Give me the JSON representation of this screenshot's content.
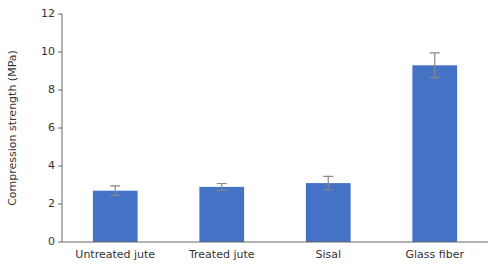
{
  "chart_data": {
    "type": "bar",
    "categories": [
      "Untreated jute",
      "Treated jute",
      "Sisal",
      "Glass fiber"
    ],
    "values": [
      2.7,
      2.9,
      3.1,
      9.3
    ],
    "errors": [
      0.25,
      0.18,
      0.35,
      0.65
    ],
    "color": "#4472C4",
    "ylabel": "Compression strength (MPa)",
    "ylim": [
      0,
      12
    ],
    "yticks": [
      0,
      2,
      4,
      6,
      8,
      10,
      12
    ],
    "grid": false
  }
}
